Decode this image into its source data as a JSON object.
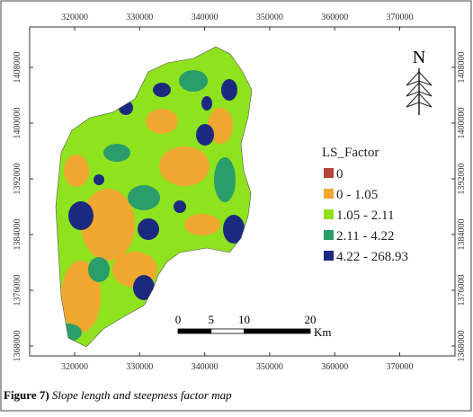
{
  "map": {
    "x_ticks": [
      320000,
      330000,
      340000,
      350000,
      360000,
      370000
    ],
    "y_ticks": [
      1408000,
      1400000,
      1392000,
      1384000,
      1376000,
      1368000
    ],
    "legend": {
      "title": "LS_Factor",
      "items": [
        {
          "label": "0",
          "color": "#b5443a"
        },
        {
          "label": "0 - 1.05",
          "color": "#f0a830"
        },
        {
          "label": "1.05 - 2.11",
          "color": "#8fe21e"
        },
        {
          "label": "2.11 - 4.22",
          "color": "#2a9d6a"
        },
        {
          "label": "4.22 - 268.93",
          "color": "#1b2a7e"
        }
      ]
    },
    "scale_bar": {
      "ticks": [
        0,
        5,
        10,
        20
      ],
      "unit": "Km"
    },
    "north": "N"
  },
  "caption": {
    "label": "Figure 7)",
    "text": "Slope length and steepness factor map"
  }
}
